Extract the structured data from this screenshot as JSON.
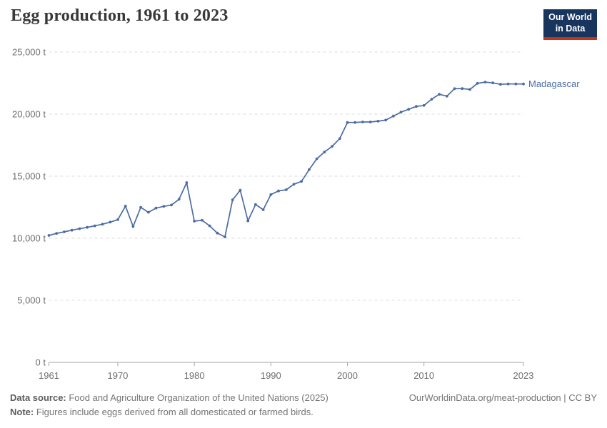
{
  "header": {
    "title": "Egg production, 1961 to 2023",
    "logo": {
      "line1": "Our World",
      "line2": "in Data"
    }
  },
  "chart_data": {
    "type": "line",
    "title": "Egg production, 1961 to 2023",
    "unit": "t",
    "xlim": [
      1961,
      2023
    ],
    "ylim": [
      0,
      25000
    ],
    "grid": "horizontal-dashed",
    "legend_position": "end-of-line-label",
    "entity_label": "Madagascar",
    "x_ticks": [
      "1961",
      "1970",
      "1980",
      "1990",
      "2000",
      "2010",
      "2023"
    ],
    "y_ticks": [
      {
        "value": 0,
        "label": "0 t"
      },
      {
        "value": 5000,
        "label": "5,000 t"
      },
      {
        "value": 10000,
        "label": "10,000 t"
      },
      {
        "value": 15000,
        "label": "15,000 t"
      },
      {
        "value": 20000,
        "label": "20,000 t"
      },
      {
        "value": 25000,
        "label": "25,000 t"
      }
    ],
    "series": [
      {
        "name": "Madagascar",
        "color": "#4C6CA4",
        "years": [
          1961,
          1962,
          1963,
          1964,
          1965,
          1966,
          1967,
          1968,
          1969,
          1970,
          1971,
          1972,
          1973,
          1974,
          1975,
          1976,
          1977,
          1978,
          1979,
          1980,
          1981,
          1982,
          1983,
          1984,
          1985,
          1986,
          1987,
          1988,
          1989,
          1990,
          1991,
          1992,
          1993,
          1994,
          1995,
          1996,
          1997,
          1998,
          1999,
          2000,
          2001,
          2002,
          2003,
          2004,
          2005,
          2006,
          2007,
          2008,
          2009,
          2010,
          2011,
          2012,
          2013,
          2014,
          2015,
          2016,
          2017,
          2018,
          2019,
          2020,
          2021,
          2022,
          2023
        ],
        "values": [
          10230,
          10390,
          10520,
          10650,
          10770,
          10880,
          11000,
          11130,
          11300,
          11500,
          12590,
          10940,
          12490,
          12090,
          12430,
          12570,
          12680,
          13140,
          14480,
          11380,
          11450,
          11000,
          10420,
          10110,
          13100,
          13870,
          11400,
          12720,
          12300,
          13520,
          13810,
          13910,
          14350,
          14580,
          15530,
          16400,
          16940,
          17410,
          18030,
          19330,
          19330,
          19370,
          19370,
          19430,
          19520,
          19840,
          20160,
          20390,
          20620,
          20700,
          21200,
          21600,
          21450,
          22050,
          22060,
          21990,
          22480,
          22580,
          22520,
          22400,
          22430,
          22430,
          22430
        ]
      }
    ]
  },
  "footer": {
    "source_label": "Data source:",
    "source_text": " Food and Agriculture Organization of the United Nations (2025)",
    "note_label": "Note:",
    "note_text": " Figures include eggs derived from all domesticated or farmed birds.",
    "credit_text": "OurWorldinData.org/meat-production | CC BY"
  },
  "colors": {
    "line": "#4C6CA4",
    "logo_navy": "#18355e",
    "logo_red": "#c4321f",
    "gridline": "#dcdcdc",
    "axis": "#a5a5a5",
    "tick_label": "#6e6e6e",
    "title_text": "#383838",
    "footer_text": "#757575"
  }
}
